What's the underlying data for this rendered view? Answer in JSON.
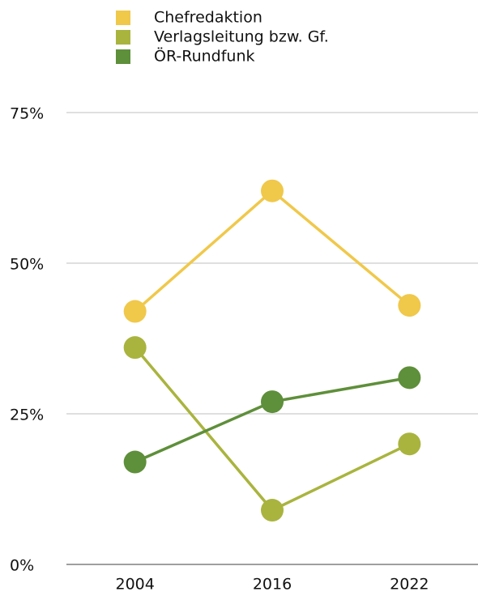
{
  "chart_data": {
    "type": "line",
    "categories": [
      "2004",
      "2016",
      "2022"
    ],
    "series": [
      {
        "name": "Chefredaktion",
        "color": "#f0c84a",
        "values": [
          42,
          62,
          43
        ]
      },
      {
        "name": "Verlagsleitung bzw. Gf.",
        "color": "#a9b43e",
        "values": [
          36,
          9,
          20
        ]
      },
      {
        "name": "ÖR-Rundfunk",
        "color": "#5e8f3a",
        "values": [
          17,
          27,
          31
        ]
      }
    ],
    "ylim": [
      0,
      75
    ],
    "yticks": [
      {
        "value": 0,
        "label": "0%"
      },
      {
        "value": 25,
        "label": "25%"
      },
      {
        "value": 50,
        "label": "50%"
      },
      {
        "value": 75,
        "label": "75%"
      }
    ],
    "grid": true,
    "legend": "top"
  }
}
